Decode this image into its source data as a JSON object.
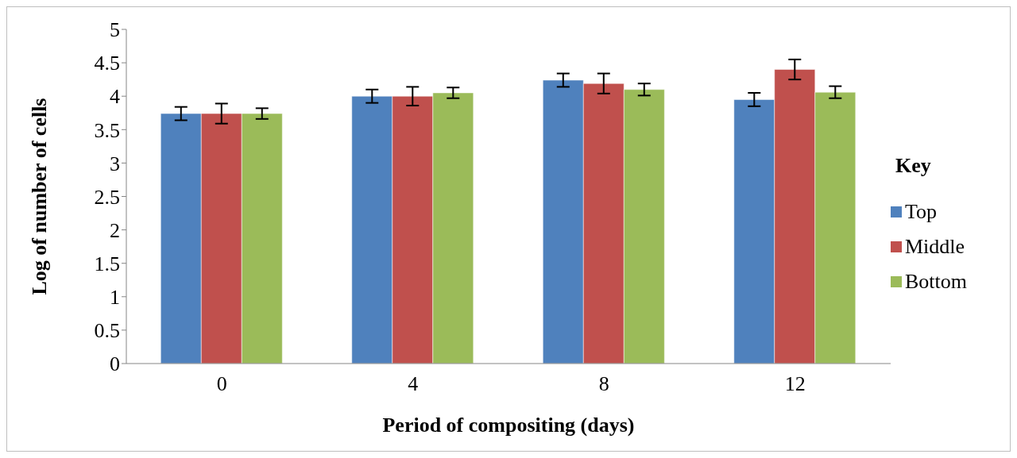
{
  "chart_data": {
    "type": "bar",
    "xlabel": "Period of compositing (days)",
    "ylabel": "Log of number of cells",
    "legend_title": "Key",
    "legend": "right",
    "grid": false,
    "categories": [
      "0",
      "4",
      "8",
      "12"
    ],
    "series": [
      {
        "name": "Top",
        "color": "#4f81bd",
        "values": [
          3.74,
          4.0,
          4.24,
          3.95
        ],
        "errors": [
          0.1,
          0.1,
          0.1,
          0.1
        ]
      },
      {
        "name": "Middle",
        "color": "#c0504d",
        "values": [
          3.74,
          4.0,
          4.19,
          4.4
        ],
        "errors": [
          0.15,
          0.14,
          0.15,
          0.15
        ]
      },
      {
        "name": "Bottom",
        "color": "#9bbb59",
        "values": [
          3.74,
          4.05,
          4.1,
          4.06
        ],
        "errors": [
          0.08,
          0.08,
          0.09,
          0.09
        ]
      }
    ],
    "ylim": [
      0,
      5
    ],
    "yticks": [
      0,
      0.5,
      1,
      1.5,
      2,
      2.5,
      3,
      3.5,
      4,
      4.5,
      5
    ]
  }
}
